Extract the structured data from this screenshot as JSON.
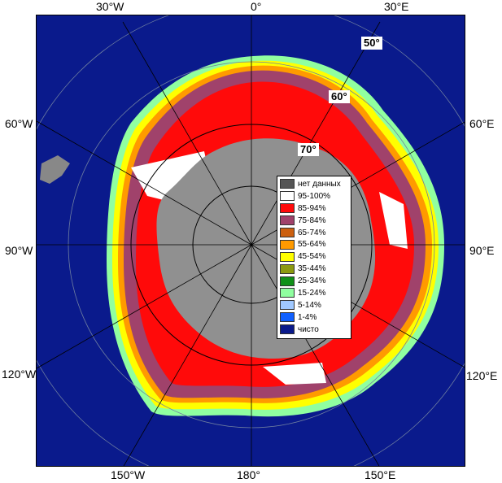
{
  "map": {
    "longitude_labels": {
      "top": [
        "30°W",
        "0°",
        "30°E"
      ],
      "left": [
        "60°W",
        "90°W",
        "120°W"
      ],
      "right": [
        "60°E",
        "90°E",
        "120°E"
      ],
      "bottom": [
        "150°W",
        "180°",
        "150°E"
      ]
    },
    "latitude_labels": [
      "50°",
      "60°",
      "70°"
    ],
    "colors": {
      "ocean": "#0a1a8c",
      "land": "#909090",
      "continent_inner": "#888888"
    }
  },
  "legend": {
    "items": [
      {
        "label": "нет данных",
        "color": "#555555"
      },
      {
        "label": "95-100%",
        "color": "#ffffff"
      },
      {
        "label": "85-94%",
        "color": "#ff0a0a"
      },
      {
        "label": "75-84%",
        "color": "#a0426b"
      },
      {
        "label": "65-74%",
        "color": "#cc6010"
      },
      {
        "label": "55-64%",
        "color": "#ff9a00"
      },
      {
        "label": "45-54%",
        "color": "#ffff00"
      },
      {
        "label": "35-44%",
        "color": "#8c9a10"
      },
      {
        "label": "25-34%",
        "color": "#109018"
      },
      {
        "label": "15-24%",
        "color": "#90ffa0"
      },
      {
        "label": "5-14%",
        "color": "#a0c8ff"
      },
      {
        "label": "1-4%",
        "color": "#1060ff"
      },
      {
        "label": "чисто",
        "color": "#0a1a8c"
      }
    ]
  }
}
